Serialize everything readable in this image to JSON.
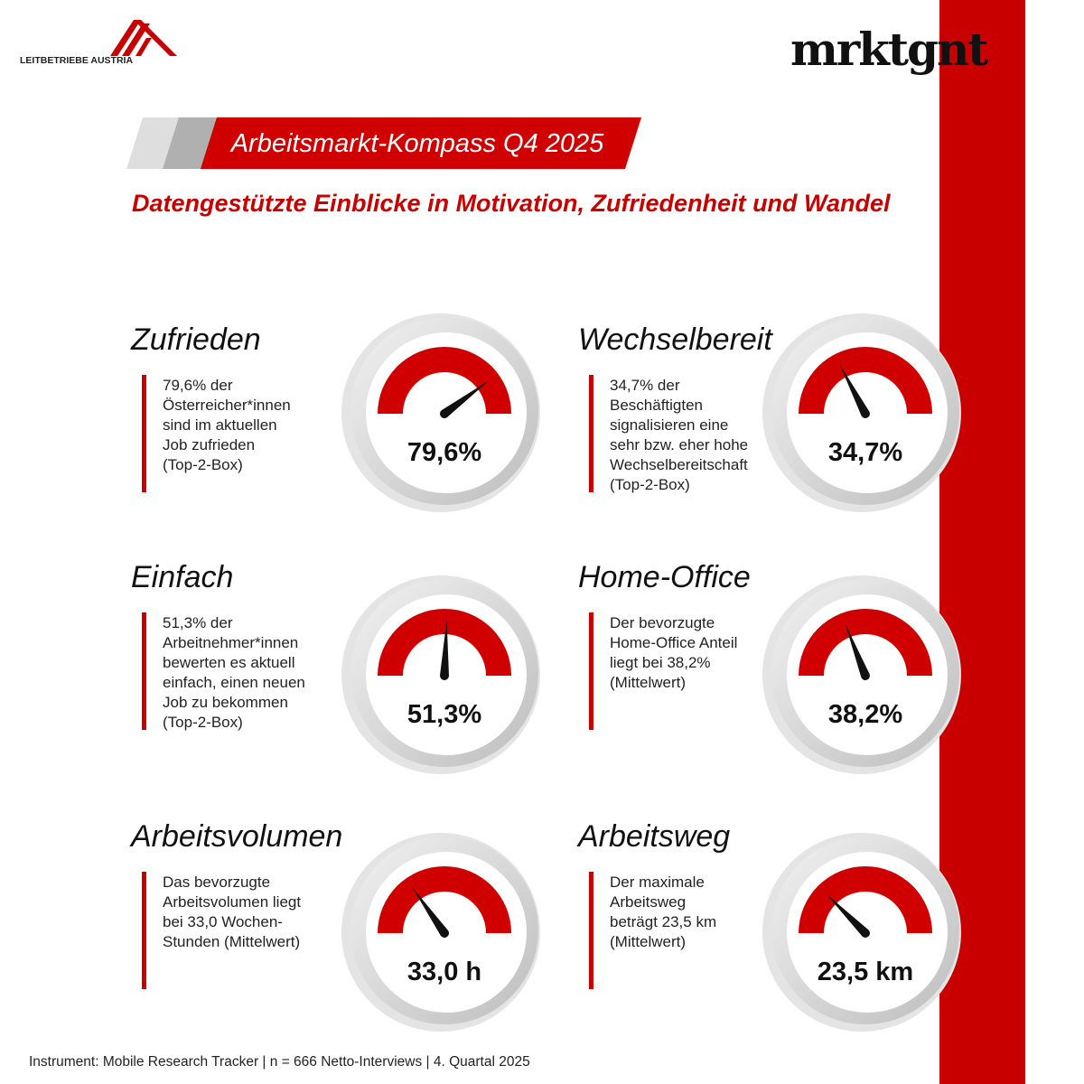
{
  "header": {
    "logo_text": "LEITBETRIEBE AUSTRIA",
    "brand": "mrktgnt",
    "banner_title": "Arbeitsmarkt-Kompass Q4 2025",
    "subtitle": "Datengestützte Einblicke in Motivation, Zufriedenheit und Wandel"
  },
  "cards": [
    {
      "title": "Zufrieden",
      "lines": [
        "79,6% der",
        "Österreicher*innen",
        "sind im aktuellen",
        "Job zufrieden",
        "(Top-2-Box)"
      ],
      "value_label": "79,6%",
      "value": 79.6
    },
    {
      "title": "Wechselbereit",
      "lines": [
        "34,7% der",
        "Beschäftigten",
        "signalisieren eine",
        "sehr bzw. eher hohe",
        "Wechselbereitschaft",
        "(Top-2-Box)"
      ],
      "value_label": "34,7%",
      "value": 34.7
    },
    {
      "title": "Einfach",
      "lines": [
        "51,3% der",
        "Arbeitnehmer*innen",
        "bewerten es aktuell",
        "einfach, einen neuen",
        "Job zu bekommen",
        "(Top-2-Box)"
      ],
      "value_label": "51,3%",
      "value": 51.3
    },
    {
      "title": "Home-Office",
      "lines": [
        "Der bevorzugte",
        "Home-Office Anteil",
        "liegt bei 38,2%",
        "(Mittelwert)"
      ],
      "value_label": "38,2%",
      "value": 38.2
    },
    {
      "title": "Arbeitsvolumen",
      "lines": [
        "Das bevorzugte",
        "Arbeitsvolumen liegt",
        "bei 33,0 Wochen-",
        "Stunden (Mittelwert)"
      ],
      "value_label": "33,0 h"
    },
    {
      "title": "Arbeitsweg",
      "lines": [
        "Der maximale",
        "Arbeitsweg",
        "beträgt 23,5 km",
        "(Mittelwert)"
      ],
      "value_label": "23,5 km"
    }
  ],
  "footer": "Instrument: Mobile Research Tracker | n = 666 Netto-Interviews | 4. Quartal 2025"
}
